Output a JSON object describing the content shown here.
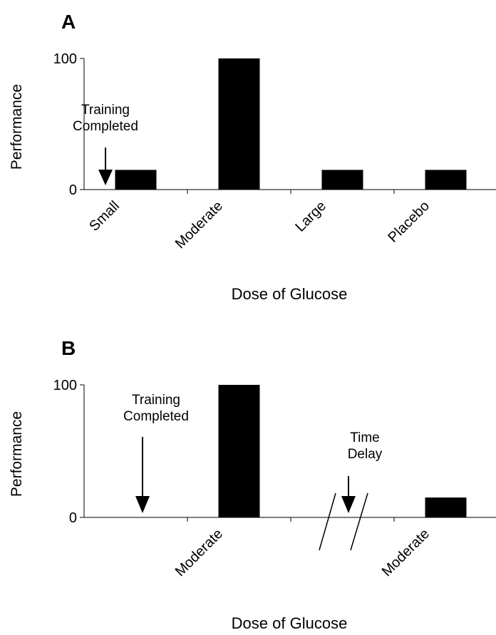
{
  "chart_data": [
    {
      "type": "bar",
      "panel": "A",
      "ylabel": "Performance",
      "xlabel": "Dose of Glucose",
      "categories": [
        "Small",
        "Moderate",
        "Large",
        "Placebo"
      ],
      "values": [
        15,
        100,
        15,
        15
      ],
      "color": "#000000",
      "ylim": [
        0,
        100
      ],
      "yticks": [
        0,
        100
      ],
      "annotations": [
        {
          "lines": [
            "Training",
            "Completed"
          ]
        }
      ]
    },
    {
      "type": "bar",
      "panel": "B",
      "ylabel": "Performance",
      "xlabel": "Dose of Glucose",
      "categories": [
        null,
        "Moderate",
        null,
        "Moderate"
      ],
      "values": [
        null,
        100,
        null,
        15
      ],
      "color": "#000000",
      "ylim": [
        0,
        100
      ],
      "yticks": [
        0,
        100
      ],
      "annotations": [
        {
          "lines": [
            "Training",
            "Completed"
          ]
        },
        {
          "lines": [
            "Time",
            "Delay"
          ]
        }
      ]
    }
  ]
}
